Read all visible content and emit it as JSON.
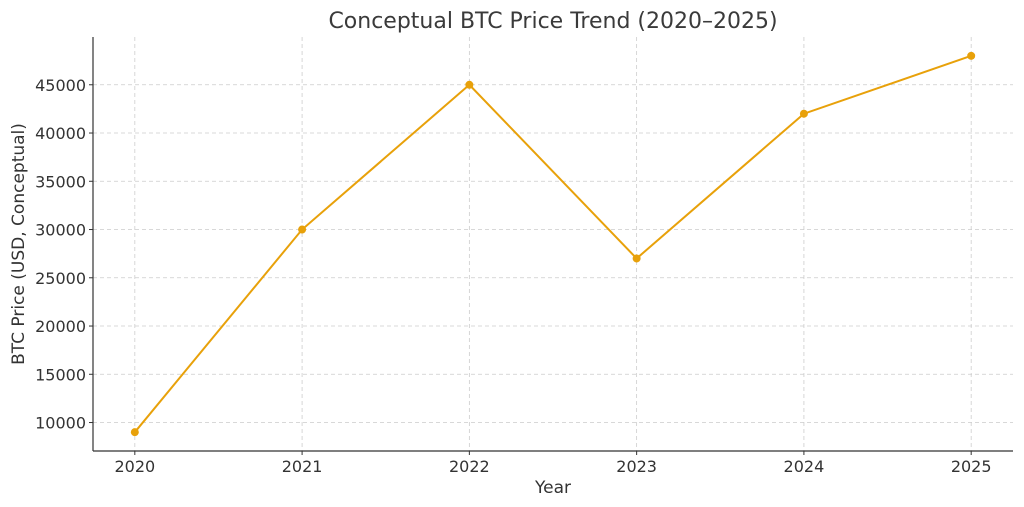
{
  "chart_data": {
    "type": "line",
    "title": "Conceptual BTC Price Trend (2020–2025)",
    "xlabel": "Year",
    "ylabel": "BTC Price (USD, Conceptual)",
    "x": [
      2020,
      2021,
      2022,
      2023,
      2024,
      2025
    ],
    "series": [
      {
        "name": "BTC Price",
        "values": [
          9000,
          30000,
          45000,
          27000,
          42000,
          48000
        ],
        "color": "#E8A10A"
      }
    ],
    "xlim": [
      2019.75,
      2025.25
    ],
    "ylim": [
      7050,
      49950
    ],
    "yticks": [
      10000,
      15000,
      20000,
      25000,
      30000,
      35000,
      40000,
      45000
    ],
    "xticks": [
      2020,
      2021,
      2022,
      2023,
      2024,
      2025
    ],
    "grid": true,
    "marker": "circle"
  }
}
